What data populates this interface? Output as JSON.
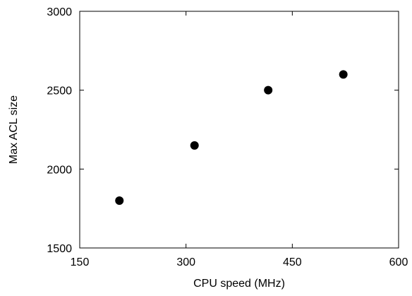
{
  "chart_data": {
    "type": "scatter",
    "title": "",
    "xlabel": "CPU speed (MHz)",
    "ylabel": "Max ACL size",
    "xlim": [
      150,
      600
    ],
    "ylim": [
      1500,
      3000
    ],
    "x_ticks": [
      "150",
      "300",
      "450",
      "600"
    ],
    "y_ticks": [
      "1500",
      "2000",
      "2500",
      "3000"
    ],
    "grid": false,
    "legend": "none",
    "series": [
      {
        "x": [
          206,
          312,
          416,
          522
        ],
        "y": [
          1800,
          2150,
          2500,
          2600
        ]
      }
    ],
    "marker_color": "#000000"
  }
}
